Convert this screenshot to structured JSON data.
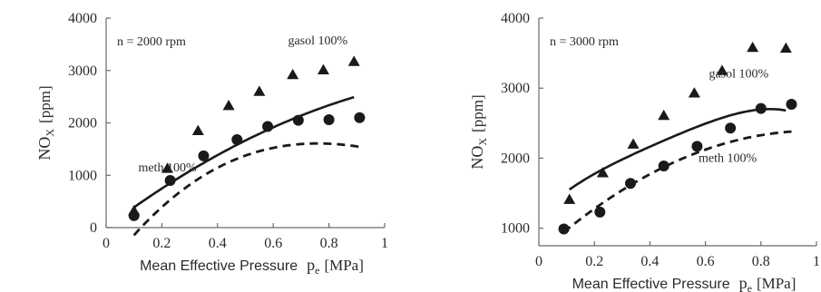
{
  "chart_data": [
    {
      "type": "scatter",
      "annotation": "n = 2000 rpm",
      "xlabel_main": "Mean Effective Pressure",
      "xlabel_symbol": "p",
      "xlabel_sub": "e",
      "xlabel_unit": "[MPa]",
      "ylabel_main": "NO",
      "ylabel_sub": "X",
      "ylabel_unit": "[ppm]",
      "xlim": [
        0,
        1
      ],
      "ylim": [
        0,
        4000
      ],
      "xticks": [
        0,
        0.2,
        0.4,
        0.6,
        0.8,
        1
      ],
      "xtick_labels": [
        "0",
        "0.2",
        "0.4",
        "0.6",
        "0.8",
        "1"
      ],
      "yticks": [
        0,
        1000,
        2000,
        3000,
        4000
      ],
      "ytick_labels": [
        "0",
        "1000",
        "2000",
        "3000",
        "4000"
      ],
      "grid": false,
      "series": [
        {
          "name": "gasol 100%",
          "marker": "triangle",
          "line": "solid",
          "points": [
            [
              0.1,
              320
            ],
            [
              0.22,
              1130
            ],
            [
              0.33,
              1850
            ],
            [
              0.44,
              2330
            ],
            [
              0.55,
              2600
            ],
            [
              0.67,
              2920
            ],
            [
              0.78,
              3010
            ],
            [
              0.89,
              3170
            ]
          ],
          "fit": [
            0.3,
            4000,
            -1350
          ],
          "fit_range": [
            0.1,
            0.89
          ]
        },
        {
          "name": "meth  100%",
          "marker": "circle",
          "line": "dashed",
          "points": [
            [
              0.1,
              230
            ],
            [
              0.23,
              900
            ],
            [
              0.35,
              1370
            ],
            [
              0.47,
              1680
            ],
            [
              0.58,
              1930
            ],
            [
              0.69,
              2050
            ],
            [
              0.8,
              2060
            ],
            [
              0.91,
              2100
            ]
          ],
          "fit": [
            -800,
            7175,
            -6375,
            1450
          ],
          "fit_range": [
            0.1,
            0.91
          ]
        }
      ],
      "labels": [
        {
          "series": 0,
          "x": 0.76,
          "y": 3500
        },
        {
          "series": 1,
          "x": 0.22,
          "y": 1070
        }
      ]
    },
    {
      "type": "scatter",
      "annotation": "n = 3000 rpm",
      "xlabel_main": "Mean Effective Pressure",
      "xlabel_symbol": "p",
      "xlabel_sub": "e",
      "xlabel_unit": "[MPa]",
      "ylabel_main": "NO",
      "ylabel_sub": "X",
      "ylabel_unit": "[ppm]",
      "xlim": [
        0,
        1
      ],
      "ylim": [
        750,
        4000
      ],
      "xticks": [
        0,
        0.2,
        0.4,
        0.6,
        0.8,
        1
      ],
      "xtick_labels": [
        "0",
        "0.2",
        "0.4",
        "0.6",
        "0.8",
        "1"
      ],
      "yticks": [
        1000,
        2000,
        3000,
        4000
      ],
      "ytick_labels": [
        "1000",
        "2000",
        "3000",
        "4000"
      ],
      "grid": false,
      "series": [
        {
          "name": "gasol 100%",
          "marker": "triangle",
          "line": "solid",
          "points": [
            [
              0.11,
              1410
            ],
            [
              0.23,
              1790
            ],
            [
              0.34,
              2200
            ],
            [
              0.45,
              2610
            ],
            [
              0.56,
              2930
            ],
            [
              0.66,
              3250
            ],
            [
              0.77,
              3580
            ],
            [
              0.89,
              3570
            ]
          ],
          "fit": [
            1190,
            3910,
            -6550,
            9300,
            -5350
          ],
          "fit_range": [
            0.11,
            0.89
          ]
        },
        {
          "name": "meth 100%",
          "marker": "circle",
          "line": "dashed",
          "points": [
            [
              0.09,
              990
            ],
            [
              0.22,
              1230
            ],
            [
              0.33,
              1640
            ],
            [
              0.45,
              1890
            ],
            [
              0.57,
              2170
            ],
            [
              0.69,
              2430
            ],
            [
              0.8,
              2710
            ],
            [
              0.91,
              2770
            ]
          ],
          "fit": [
            640,
            3550,
            -1800
          ],
          "fit_range": [
            0.09,
            0.91
          ]
        }
      ],
      "labels": [
        {
          "series": 0,
          "x": 0.72,
          "y": 3150
        },
        {
          "series": 1,
          "x": 0.68,
          "y": 1950
        }
      ]
    }
  ]
}
